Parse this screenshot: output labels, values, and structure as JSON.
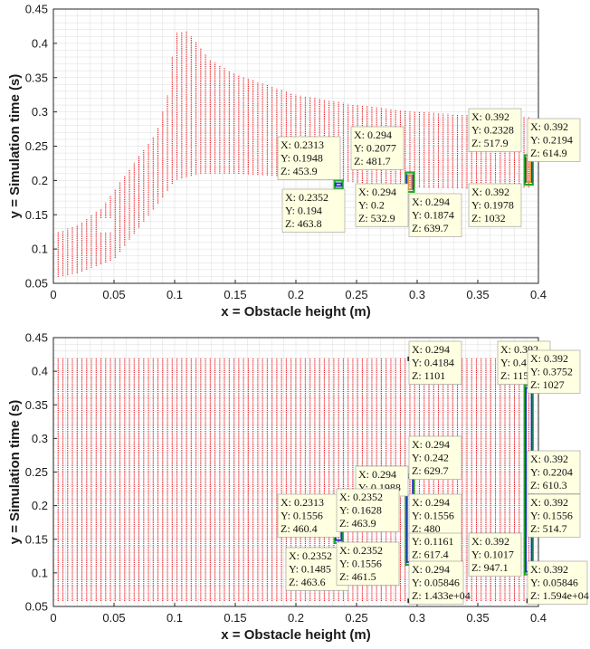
{
  "colors": {
    "points": "#e8191f",
    "grid": "#dcdcdc",
    "tip_fill": "#ffffe1",
    "tip_stroke": "#999999",
    "box_green": "#22aa22",
    "box_blue": "#1d2fc6",
    "box_orange": "#e39b25"
  },
  "chart_data": [
    {
      "type": "scatter",
      "title": "",
      "xlabel": "x = Obstacle height (m)",
      "ylabel": "y = Simulation time (s)",
      "xlim": [
        0,
        0.4
      ],
      "ylim": [
        0.05,
        0.45
      ],
      "xticks": [
        "0",
        "0.05",
        "0.1",
        "0.15",
        "0.2",
        "0.25",
        "0.3",
        "0.35",
        "0.4"
      ],
      "yticks": [
        "0.05",
        "0.1",
        "0.15",
        "0.2",
        "0.25",
        "0.3",
        "0.35",
        "0.4",
        "0.45"
      ],
      "grid": true,
      "x_step": 0.00392,
      "y_step": 0.0015,
      "envelope_upper": [
        [
          0,
          0.122
        ],
        [
          0.02,
          0.135
        ],
        [
          0.04,
          0.16
        ],
        [
          0.06,
          0.21
        ],
        [
          0.085,
          0.27
        ],
        [
          0.095,
          0.33
        ],
        [
          0.1,
          0.415
        ],
        [
          0.11,
          0.418
        ],
        [
          0.13,
          0.375
        ],
        [
          0.15,
          0.355
        ],
        [
          0.2,
          0.325
        ],
        [
          0.25,
          0.31
        ],
        [
          0.3,
          0.3
        ],
        [
          0.35,
          0.295
        ],
        [
          0.392,
          0.293
        ]
      ],
      "envelope_lower": [
        [
          0,
          0.058
        ],
        [
          0.02,
          0.065
        ],
        [
          0.05,
          0.085
        ],
        [
          0.07,
          0.13
        ],
        [
          0.09,
          0.175
        ],
        [
          0.1,
          0.2
        ],
        [
          0.12,
          0.21
        ],
        [
          0.15,
          0.21
        ],
        [
          0.2,
          0.205
        ],
        [
          0.25,
          0.197
        ],
        [
          0.3,
          0.19
        ],
        [
          0.35,
          0.188
        ],
        [
          0.392,
          0.19
        ]
      ],
      "gap": {
        "x_range": [
          0.037,
          0.048
        ],
        "y_range": [
          0.125,
          0.145
        ]
      },
      "boxes": [
        {
          "x": 0.2352,
          "y0": 0.192,
          "y1": 0.196,
          "colors": [
            "green",
            "blue"
          ]
        },
        {
          "x": 0.294,
          "y0": 0.1874,
          "y1": 0.2077,
          "colors": [
            "green",
            "blue",
            "orange"
          ]
        },
        {
          "x": 0.392,
          "y0": 0.1978,
          "y1": 0.2328,
          "colors": [
            "green",
            "blue",
            "orange"
          ]
        }
      ],
      "markers": [],
      "datatips": [
        {
          "x": 0.2313,
          "y": 0.1948,
          "z": 453.9,
          "lines": [
            "X: 0.2313",
            "Y: 0.1948",
            "Z: 453.9"
          ]
        },
        {
          "x": 0.2352,
          "y": 0.194,
          "z": 463.8,
          "lines": [
            "X: 0.2352",
            "Y: 0.194",
            "Z: 463.8"
          ]
        },
        {
          "x": 0.294,
          "y": 0.2077,
          "z": 481.7,
          "lines": [
            "X: 0.294",
            "Y: 0.2077",
            "Z: 481.7"
          ]
        },
        {
          "x": 0.294,
          "y": 0.2,
          "z": 532.9,
          "lines": [
            "X: 0.294",
            "Y: 0.2",
            "Z: 532.9"
          ]
        },
        {
          "x": 0.294,
          "y": 0.1874,
          "z": 639.7,
          "lines": [
            "X: 0.294",
            "Y: 0.1874",
            "Z: 639.7"
          ]
        },
        {
          "x": 0.392,
          "y": 0.2328,
          "z": 517.9,
          "lines": [
            "X: 0.392",
            "Y: 0.2328",
            "Z: 517.9"
          ]
        },
        {
          "x": 0.392,
          "y": 0.2194,
          "z": 614.9,
          "lines": [
            "X: 0.392",
            "Y: 0.2194",
            "Z: 614.9"
          ]
        },
        {
          "x": 0.392,
          "y": 0.1978,
          "z": 1032,
          "lines": [
            "X: 0.392",
            "Y: 0.1978",
            "Z: 1032"
          ]
        }
      ]
    },
    {
      "type": "scatter",
      "title": "",
      "xlabel": "x = Obstacle height (m)",
      "ylabel": "y = Simulation time (s)",
      "xlim": [
        0,
        0.4
      ],
      "ylim": [
        0.05,
        0.45
      ],
      "xticks": [
        "0",
        "0.05",
        "0.1",
        "0.15",
        "0.2",
        "0.25",
        "0.3",
        "0.35",
        "0.4"
      ],
      "yticks": [
        "0.05",
        "0.1",
        "0.15",
        "0.2",
        "0.25",
        "0.3",
        "0.35",
        "0.4",
        "0.45"
      ],
      "grid": true,
      "x_step": 0.00392,
      "y_step": 0.0015,
      "envelope_upper": [
        [
          0,
          0.42
        ],
        [
          0.392,
          0.42
        ]
      ],
      "envelope_lower": [
        [
          0,
          0.058
        ],
        [
          0.392,
          0.058
        ]
      ],
      "gap": null,
      "boxes": [
        {
          "x": 0.2352,
          "y0": 0.1485,
          "y1": 0.1628,
          "colors": [
            "green",
            "blue"
          ]
        },
        {
          "x": 0.294,
          "y0": 0.1161,
          "y1": 0.242,
          "colors": [
            "green",
            "blue"
          ]
        },
        {
          "x": 0.392,
          "y0": 0.1017,
          "y1": 0.3752,
          "colors": [
            "green",
            "blue"
          ]
        }
      ],
      "markers": [
        {
          "x": 0.294,
          "y": 0.4184
        },
        {
          "x": 0.392,
          "y": 0.4184
        },
        {
          "x": 0.294,
          "y": 0.05846
        },
        {
          "x": 0.392,
          "y": 0.05846
        }
      ],
      "datatips": [
        {
          "x": 0.294,
          "y": 0.4184,
          "z": 1101,
          "lines": [
            "X: 0.294",
            "Y: 0.4184",
            "Z: 1101"
          ]
        },
        {
          "x": 0.392,
          "y": 0.4184,
          "z": 1151,
          "lines": [
            "X: 0.392",
            "Y: 0.4184",
            "Z: 1151"
          ]
        },
        {
          "x": 0.392,
          "y": 0.3752,
          "z": 1027,
          "lines": [
            "X: 0.392",
            "Y: 0.3752",
            "Z: 1027"
          ]
        },
        {
          "x": 0.294,
          "y": 0.242,
          "z": 629.7,
          "lines": [
            "X: 0.294",
            "Y: 0.242",
            "Z: 629.7"
          ]
        },
        {
          "x": 0.392,
          "y": 0.2204,
          "z": 610.3,
          "lines": [
            "X: 0.392",
            "Y: 0.2204",
            "Z: 610.3"
          ]
        },
        {
          "x": 0.294,
          "y": 0.1988,
          "z": null,
          "lines": [
            "X: 0.294",
            "Y: 0.1988"
          ]
        },
        {
          "x": 0.2313,
          "y": 0.1556,
          "z": 460.4,
          "lines": [
            "X: 0.2313",
            "Y: 0.1556",
            "Z: 460.4"
          ]
        },
        {
          "x": 0.2352,
          "y": 0.1628,
          "z": 463.9,
          "lines": [
            "X: 0.2352",
            "Y: 0.1628",
            "Z: 463.9"
          ]
        },
        {
          "x": 0.294,
          "y": 0.1556,
          "z": 480,
          "lines": [
            "X: 0.294",
            "Y: 0.1556",
            "Z: 480"
          ]
        },
        {
          "x": 0.392,
          "y": 0.1556,
          "z": 514.7,
          "lines": [
            "X: 0.392",
            "Y: 0.1556",
            "Z: 514.7"
          ]
        },
        {
          "x": 0.294,
          "y": 0.1161,
          "z": 617.4,
          "lines": [
            "Y: 0.1161",
            "Z: 617.4"
          ]
        },
        {
          "x": 0.2352,
          "y": 0.1485,
          "z": 463.6,
          "lines": [
            "X: 0.2352",
            "Y: 0.1485",
            "Z: 463.6"
          ]
        },
        {
          "x": 0.2352,
          "y": 0.1556,
          "z": 461.5,
          "lines": [
            "X: 0.2352",
            "Y: 0.1556",
            "Z: 461.5"
          ]
        },
        {
          "x": 0.392,
          "y": 0.1017,
          "z": 947.1,
          "lines": [
            "X: 0.392",
            "Y: 0.1017",
            "Z: 947.1"
          ]
        },
        {
          "x": 0.294,
          "y": 0.05846,
          "z": "1.433e+04",
          "lines": [
            "X: 0.294",
            "Y: 0.05846",
            "Z: 1.433e+04"
          ]
        },
        {
          "x": 0.392,
          "y": 0.05846,
          "z": "1.594e+04",
          "lines": [
            "X: 0.392",
            "Y: 0.05846",
            "Z: 1.594e+04"
          ]
        }
      ]
    }
  ]
}
